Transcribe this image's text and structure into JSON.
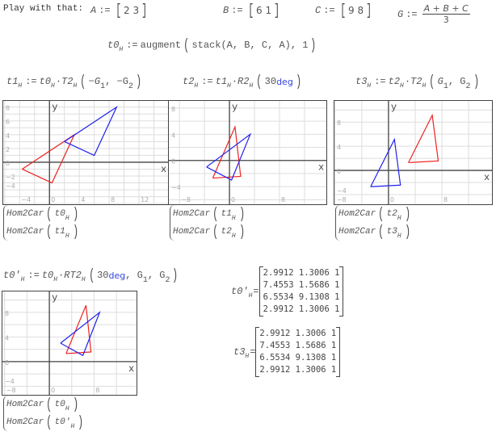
{
  "header": {
    "play_label": "Play with that:"
  },
  "definitions": {
    "A": {
      "name": "A",
      "assign": ":=",
      "values": "2 3"
    },
    "B": {
      "name": "B",
      "assign": ":=",
      "values": "6 1"
    },
    "C": {
      "name": "C",
      "assign": ":=",
      "values": "9 8"
    },
    "G": {
      "name": "G",
      "assign": ":=",
      "numerator": "A + B + C",
      "denominator": "3"
    }
  },
  "equations": {
    "t0": [
      {
        "k": "v",
        "s": "t0"
      },
      {
        "k": "sub",
        "s": "H"
      },
      {
        "k": "op",
        "s": ":="
      },
      {
        "k": "t",
        "s": "augment"
      },
      {
        "k": "br",
        "s": "("
      },
      {
        "k": "t",
        "s": "stack(A, B, C, A), 1"
      },
      {
        "k": "br",
        "s": ")"
      }
    ],
    "t1": [
      {
        "k": "v",
        "s": "t1"
      },
      {
        "k": "sub",
        "s": "H"
      },
      {
        "k": "op",
        "s": ":="
      },
      {
        "k": "v",
        "s": "t0"
      },
      {
        "k": "sub",
        "s": "H"
      },
      {
        "k": "t",
        "s": "·"
      },
      {
        "k": "v",
        "s": "T2"
      },
      {
        "k": "sub",
        "s": "H"
      },
      {
        "k": "br",
        "s": "("
      },
      {
        "k": "v",
        "s": "−G"
      },
      {
        "k": "subn",
        "s": "1"
      },
      {
        "k": "t",
        "s": ", −G"
      },
      {
        "k": "subn",
        "s": "2"
      },
      {
        "k": "br",
        "s": ")"
      }
    ],
    "t2": [
      {
        "k": "v",
        "s": "t2"
      },
      {
        "k": "sub",
        "s": "H"
      },
      {
        "k": "op",
        "s": ":="
      },
      {
        "k": "v",
        "s": "t1"
      },
      {
        "k": "sub",
        "s": "H"
      },
      {
        "k": "t",
        "s": "·"
      },
      {
        "k": "v",
        "s": "R2"
      },
      {
        "k": "sub",
        "s": "H"
      },
      {
        "k": "br",
        "s": "("
      },
      {
        "k": "t",
        "s": "30 "
      },
      {
        "k": "kw",
        "s": "deg"
      },
      {
        "k": "br",
        "s": ")"
      }
    ],
    "t3": [
      {
        "k": "v",
        "s": "t3"
      },
      {
        "k": "sub",
        "s": "H"
      },
      {
        "k": "op",
        "s": ":="
      },
      {
        "k": "v",
        "s": "t2"
      },
      {
        "k": "sub",
        "s": "H"
      },
      {
        "k": "t",
        "s": "·"
      },
      {
        "k": "v",
        "s": "T2"
      },
      {
        "k": "sub",
        "s": "H"
      },
      {
        "k": "br",
        "s": "("
      },
      {
        "k": "v",
        "s": "G"
      },
      {
        "k": "subn",
        "s": "1"
      },
      {
        "k": "t",
        "s": ", G"
      },
      {
        "k": "subn",
        "s": "2"
      },
      {
        "k": "br",
        "s": ")"
      }
    ],
    "t0p": [
      {
        "k": "v",
        "s": "t0'"
      },
      {
        "k": "sub",
        "s": "H"
      },
      {
        "k": "op",
        "s": ":="
      },
      {
        "k": "v",
        "s": "t0"
      },
      {
        "k": "sub",
        "s": "H"
      },
      {
        "k": "t",
        "s": "·"
      },
      {
        "k": "v",
        "s": "RT2"
      },
      {
        "k": "sub",
        "s": "H"
      },
      {
        "k": "br",
        "s": "("
      },
      {
        "k": "t",
        "s": "30 "
      },
      {
        "k": "kw",
        "s": "deg"
      },
      {
        "k": "t",
        "s": ", G"
      },
      {
        "k": "subn",
        "s": "1"
      },
      {
        "k": "t",
        "s": ", G"
      },
      {
        "k": "subn",
        "s": "2"
      },
      {
        "k": "br",
        "s": ")"
      }
    ]
  },
  "plots": [
    {
      "xlim": [
        -6.2,
        16
      ],
      "ylim": [
        -6.1,
        8.9
      ],
      "xticks": [
        -4,
        0,
        4,
        8,
        12
      ],
      "yticks": [
        -4,
        -2,
        0,
        2,
        4,
        6,
        8
      ],
      "xlabel": "x",
      "ylabel": "y",
      "traces": [
        {
          "color": "#ee2222",
          "points": [
            [
              -3.667,
              -1
            ],
            [
              0.333,
              -3
            ],
            [
              3.333,
              4
            ],
            [
              -3.667,
              -1
            ]
          ]
        },
        {
          "color": "#2222ee",
          "points": [
            [
              2,
              3
            ],
            [
              6,
              1
            ],
            [
              9,
              8
            ],
            [
              2,
              3
            ]
          ]
        }
      ],
      "legend": [
        {
          "fn": "Hom2Car",
          "arg": "t0",
          "sub": "H"
        },
        {
          "fn": "Hom2Car",
          "arg": "t1",
          "sub": "H"
        }
      ]
    },
    {
      "xlim": [
        -9.7,
        15.5
      ],
      "ylim": [
        -6.7,
        9.1
      ],
      "xticks": [
        -8,
        0,
        8
      ],
      "yticks": [
        -4,
        0,
        4,
        8
      ],
      "xlabel": "x",
      "ylabel": "y",
      "traces": [
        {
          "color": "#ee2222",
          "points": [
            [
              -2.675,
              -2.699
            ],
            [
              1.789,
              -2.431
            ],
            [
              0.887,
              5.131
            ],
            [
              -2.675,
              -2.699
            ]
          ]
        },
        {
          "color": "#2222ee",
          "points": [
            [
              -3.667,
              -1
            ],
            [
              0.333,
              -3
            ],
            [
              3.333,
              4
            ],
            [
              -3.667,
              -1
            ]
          ]
        }
      ],
      "legend": [
        {
          "fn": "Hom2Car",
          "arg": "t1",
          "sub": "H"
        },
        {
          "fn": "Hom2Car",
          "arg": "t2",
          "sub": "H"
        }
      ]
    },
    {
      "xlim": [
        -8.1,
        15.5
      ],
      "ylim": [
        -5.6,
        11.5
      ],
      "xticks": [
        -8,
        0,
        8
      ],
      "yticks": [
        -4,
        0,
        4,
        8
      ],
      "xlabel": "x",
      "ylabel": "y",
      "traces": [
        {
          "color": "#ee2222",
          "points": [
            [
              2.9912,
              1.3006
            ],
            [
              7.4553,
              1.5686
            ],
            [
              6.5534,
              9.1308
            ],
            [
              2.9912,
              1.3006
            ]
          ]
        },
        {
          "color": "#2222ee",
          "points": [
            [
              -2.675,
              -2.699
            ],
            [
              1.789,
              -2.431
            ],
            [
              0.887,
              5.131
            ],
            [
              -2.675,
              -2.699
            ]
          ]
        }
      ],
      "legend": [
        {
          "fn": "Hom2Car",
          "arg": "t2",
          "sub": "H"
        },
        {
          "fn": "Hom2Car",
          "arg": "t3",
          "sub": "H"
        }
      ]
    },
    {
      "xlim": [
        -8.4,
        15.6
      ],
      "ylim": [
        -5.4,
        11.4
      ],
      "xticks": [
        -8,
        0,
        8
      ],
      "yticks": [
        -4,
        0,
        4,
        8
      ],
      "xlabel": "x",
      "ylabel": "y",
      "traces": [
        {
          "color": "#ee2222",
          "points": [
            [
              2.9912,
              1.3006
            ],
            [
              7.4553,
              1.5686
            ],
            [
              6.5534,
              9.1308
            ],
            [
              2.9912,
              1.3006
            ]
          ]
        },
        {
          "color": "#2222ee",
          "points": [
            [
              2,
              3
            ],
            [
              6,
              1
            ],
            [
              9,
              8
            ],
            [
              2,
              3
            ]
          ]
        }
      ],
      "legend": [
        {
          "fn": "Hom2Car",
          "arg": "t0",
          "sub": "H"
        },
        {
          "fn": "Hom2Car",
          "arg": "t0'",
          "sub": "H"
        }
      ]
    }
  ],
  "results": [
    {
      "name": "t0'",
      "sub": "H",
      "eq": "=",
      "rows": [
        [
          "2.9912",
          "1.3006",
          "1"
        ],
        [
          "7.4553",
          "1.5686",
          "1"
        ],
        [
          "6.5534",
          "9.1308",
          "1"
        ],
        [
          "2.9912",
          "1.3006",
          "1"
        ]
      ]
    },
    {
      "name": "t3",
      "sub": "H",
      "eq": "=",
      "rows": [
        [
          "2.9912",
          "1.3006",
          "1"
        ],
        [
          "7.4553",
          "1.5686",
          "1"
        ],
        [
          "6.5534",
          "9.1308",
          "1"
        ],
        [
          "2.9912",
          "1.3006",
          "1"
        ]
      ]
    }
  ]
}
